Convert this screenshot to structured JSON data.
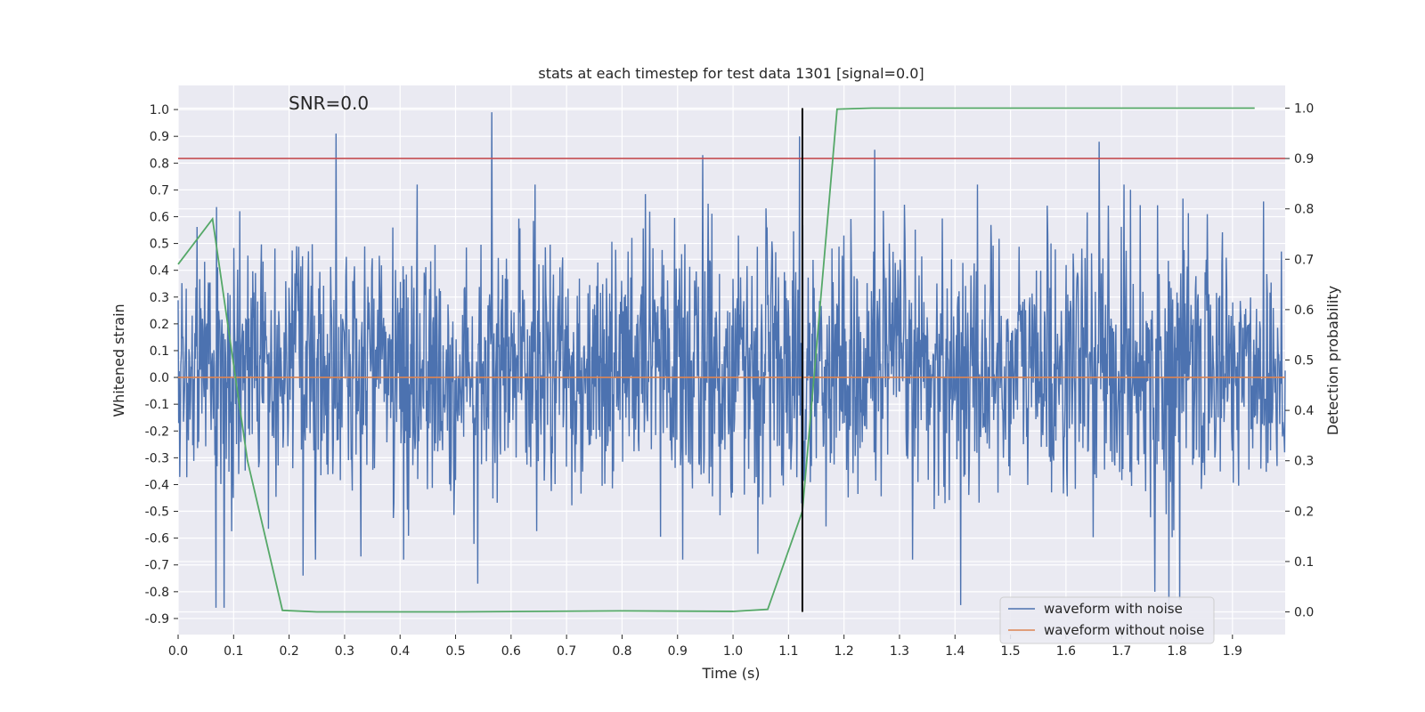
{
  "chart_data": {
    "type": "line",
    "title": "stats at each timestep for test data 1301 [signal=0.0]",
    "xlabel": "Time (s)",
    "ylabel": "Whitened strain",
    "ylabel_right": "Detection probability",
    "annotation": "SNR=0.0",
    "xlim": [
      0.0,
      1.995
    ],
    "ylim": [
      -0.96,
      1.09
    ],
    "ylim_right": [
      -0.045,
      1.045
    ],
    "grid": true,
    "x_ticks": [
      0.0,
      0.1,
      0.2,
      0.3,
      0.4,
      0.5,
      0.6,
      0.7,
      0.8,
      0.9,
      1.0,
      1.1,
      1.2,
      1.3,
      1.4,
      1.5,
      1.6,
      1.7,
      1.8,
      1.9
    ],
    "x_tick_labels": [
      "0.0",
      "0.1",
      "0.2",
      "0.3",
      "0.4",
      "0.5",
      "0.6",
      "0.7",
      "0.8",
      "0.9",
      "1.0",
      "1.1",
      "1.2",
      "1.3",
      "1.4",
      "1.5",
      "1.6",
      "1.7",
      "1.8",
      "1.9"
    ],
    "y_ticks": [
      1.0,
      0.9,
      0.8,
      0.7,
      0.6,
      0.5,
      0.4,
      0.3,
      0.2,
      0.1,
      0.0,
      -0.1,
      -0.2,
      -0.3,
      -0.4,
      -0.5,
      -0.6,
      -0.7,
      -0.8,
      -0.9
    ],
    "y_tick_labels": [
      "1.0",
      "0.9",
      "0.8",
      "0.7",
      "0.6",
      "0.5",
      "0.4",
      "0.3",
      "0.2",
      "0.1",
      "0.0",
      "-0.1",
      "-0.2",
      "-0.3",
      "-0.4",
      "-0.5",
      "-0.6",
      "-0.7",
      "-0.8",
      "-0.9"
    ],
    "y_right_ticks": [
      1.0,
      0.9,
      0.8,
      0.7,
      0.6,
      0.5,
      0.4,
      0.3,
      0.2,
      0.1,
      0.0
    ],
    "y_right_tick_labels": [
      "1.0",
      "0.9",
      "0.8",
      "0.7",
      "0.6",
      "0.5",
      "0.4",
      "0.3",
      "0.2",
      "0.1",
      "0.0"
    ],
    "series": [
      {
        "name": "waveform with noise",
        "color": "#4c72b0",
        "axis": "left",
        "kind": "noise",
        "x_range": [
          0.0,
          1.995
        ],
        "samples": 2048,
        "seed": 1301,
        "spikes": [
          {
            "x": 0.285,
            "y": 0.91
          },
          {
            "x": 0.565,
            "y": 0.99
          },
          {
            "x": 0.945,
            "y": 0.83
          },
          {
            "x": 1.12,
            "y": 0.9
          },
          {
            "x": 1.255,
            "y": 0.85
          },
          {
            "x": 1.66,
            "y": 0.88
          },
          {
            "x": 0.068,
            "y": -0.86
          },
          {
            "x": 0.083,
            "y": -0.86
          },
          {
            "x": 0.54,
            "y": -0.77
          },
          {
            "x": 1.41,
            "y": -0.85
          },
          {
            "x": 1.785,
            "y": -0.88
          },
          {
            "x": 1.805,
            "y": -0.83
          },
          {
            "x": 1.76,
            "y": -0.8
          },
          {
            "x": 0.225,
            "y": -0.74
          }
        ]
      },
      {
        "name": "waveform without noise",
        "color": "#dd8452",
        "axis": "left",
        "x": [
          0.0,
          1.995
        ],
        "y": [
          0.0,
          0.0
        ]
      },
      {
        "name": "detection probability",
        "color": "#55a868",
        "axis": "right",
        "x": [
          0.0,
          0.062,
          0.125,
          0.188,
          0.25,
          0.5,
          0.8,
          1.0,
          1.0625,
          1.125,
          1.1875,
          1.25,
          1.5,
          1.8,
          1.94
        ],
        "y": [
          0.69,
          0.78,
          0.3,
          0.003,
          0.0,
          0.0,
          0.002,
          0.001,
          0.005,
          0.2,
          0.998,
          1.0,
          1.0,
          1.0,
          1.0
        ]
      }
    ],
    "threshold": {
      "value": 0.9,
      "axis": "right",
      "color": "#c44e52"
    },
    "vline": {
      "x": 1.125,
      "color": "#000000"
    },
    "legend": {
      "position": "lower-right",
      "entries": [
        {
          "label": "waveform with noise",
          "color": "#4c72b0"
        },
        {
          "label": "waveform without noise",
          "color": "#dd8452"
        }
      ]
    }
  }
}
